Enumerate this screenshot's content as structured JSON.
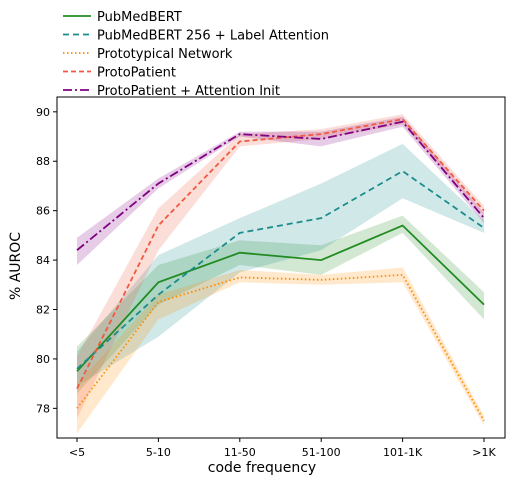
{
  "chart_data": {
    "type": "line",
    "xlabel": "code frequency",
    "ylabel": "% AUROC",
    "categories": [
      "<5",
      "5-10",
      "11-50",
      "51-100",
      "101-1K",
      ">1K"
    ],
    "ylim": [
      76.8,
      90.6
    ],
    "yticks": [
      78,
      80,
      82,
      84,
      86,
      88,
      90
    ],
    "legend_position": "top",
    "grid": false,
    "series": [
      {
        "name": "PubMedBERT",
        "color": "#228B22",
        "dash": "solid",
        "values": [
          79.5,
          83.1,
          84.3,
          84.0,
          85.4,
          82.2
        ],
        "band_low": [
          78.6,
          82.2,
          83.8,
          83.4,
          85.1,
          81.6
        ],
        "band_high": [
          80.5,
          83.8,
          84.8,
          84.6,
          85.8,
          82.7
        ]
      },
      {
        "name": "PubMedBERT 256 + Label Attention",
        "color": "#1B8C8C",
        "dash": "6,4",
        "values": [
          79.6,
          82.6,
          85.1,
          85.7,
          87.6,
          85.3
        ],
        "band_low": [
          78.9,
          80.9,
          83.5,
          84.4,
          86.5,
          85.1
        ],
        "band_high": [
          80.3,
          84.2,
          85.7,
          87.1,
          88.7,
          85.6
        ]
      },
      {
        "name": "Prototypical Network",
        "color": "#FF8C00",
        "dash": "1.5,2.5",
        "values": [
          78.0,
          82.3,
          83.3,
          83.2,
          83.4,
          77.5
        ],
        "band_low": [
          77.0,
          81.6,
          83.1,
          83.0,
          83.1,
          77.3
        ],
        "band_high": [
          79.0,
          82.6,
          83.6,
          83.4,
          83.7,
          77.7
        ]
      },
      {
        "name": "ProtoPatient",
        "color": "#F05A40",
        "dash": "5,3",
        "values": [
          78.8,
          85.4,
          88.8,
          89.1,
          89.7,
          86.0
        ],
        "band_low": [
          77.6,
          84.4,
          88.6,
          88.9,
          89.5,
          85.8
        ],
        "band_high": [
          80.1,
          86.1,
          89.1,
          89.3,
          89.9,
          86.2
        ]
      },
      {
        "name": "ProtoPatient + Attention Init",
        "color": "#800080",
        "dash": "9,3,2,3",
        "values": [
          84.4,
          87.1,
          89.1,
          88.9,
          89.6,
          85.7
        ],
        "band_low": [
          83.8,
          86.9,
          89.0,
          88.6,
          89.4,
          85.5
        ],
        "band_high": [
          84.9,
          87.3,
          89.2,
          89.2,
          89.8,
          85.9
        ]
      }
    ]
  }
}
